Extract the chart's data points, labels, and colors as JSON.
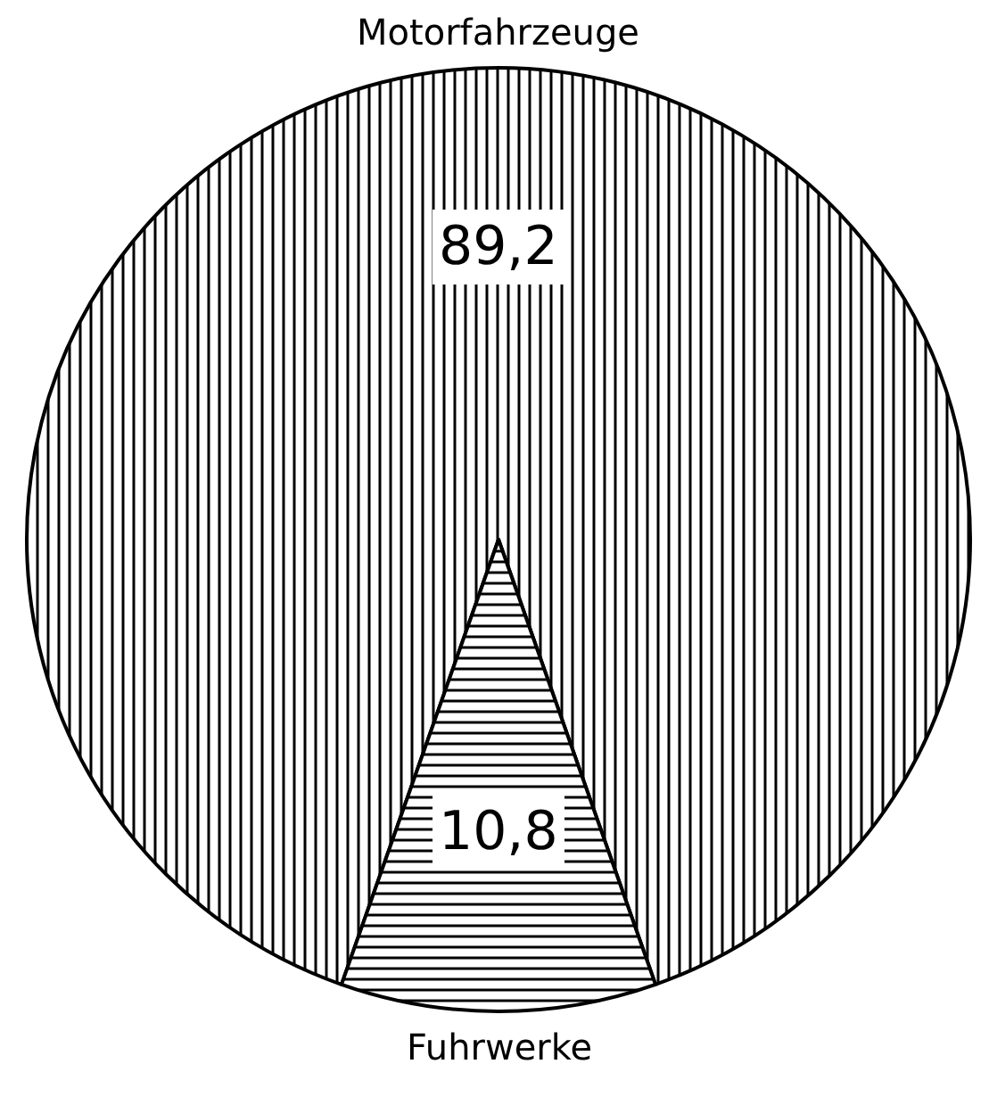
{
  "chart_data": {
    "type": "pie",
    "categories": [
      "Motorfahrzeuge",
      "Fuhrwerke"
    ],
    "values": [
      89.2,
      10.8
    ],
    "value_labels": [
      "89,2",
      "10,8"
    ],
    "colors": [
      "#000000",
      "#000000"
    ],
    "legend": false
  }
}
